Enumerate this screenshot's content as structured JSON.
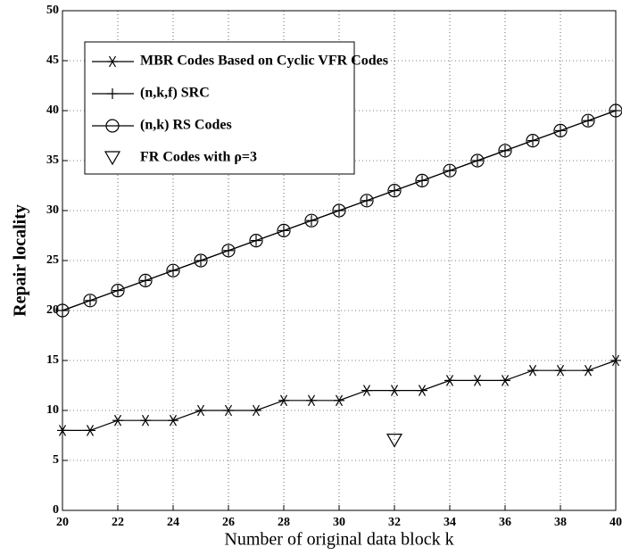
{
  "chart_data": {
    "type": "line",
    "xlabel": "Number of original data block k",
    "ylabel": "Repair locality",
    "x": [
      20,
      21,
      22,
      23,
      24,
      25,
      26,
      27,
      28,
      29,
      30,
      31,
      32,
      33,
      34,
      35,
      36,
      37,
      38,
      39,
      40
    ],
    "series": [
      {
        "name": "MBR Codes Based on Cyclic VFR Codes",
        "color": "#000000",
        "marker": "asterisk",
        "line": true,
        "values": [
          8,
          8,
          9,
          9,
          9,
          10,
          10,
          10,
          11,
          11,
          11,
          12,
          12,
          12,
          13,
          13,
          13,
          14,
          14,
          14,
          15
        ]
      },
      {
        "name": "(n,k,f) SRC",
        "color": "#000000",
        "marker": "plus",
        "line": true,
        "values": [
          20,
          21,
          22,
          23,
          24,
          25,
          26,
          27,
          28,
          29,
          30,
          31,
          32,
          33,
          34,
          35,
          36,
          37,
          38,
          39,
          40
        ]
      },
      {
        "name": "(n,k) RS Codes",
        "color": "#000000",
        "marker": "circle",
        "line": true,
        "values": [
          20,
          21,
          22,
          23,
          24,
          25,
          26,
          27,
          28,
          29,
          30,
          31,
          32,
          33,
          34,
          35,
          36,
          37,
          38,
          39,
          40
        ]
      },
      {
        "name": "FR Codes with ρ=3",
        "color": "#000000",
        "marker": "triangle",
        "line": false,
        "x": [
          32
        ],
        "values": [
          7
        ]
      }
    ],
    "xlim": [
      20,
      40
    ],
    "xticks": [
      20,
      22,
      24,
      26,
      28,
      30,
      32,
      34,
      36,
      38,
      40
    ],
    "ylim": [
      0,
      50
    ],
    "yticks": [
      0,
      5,
      10,
      15,
      20,
      25,
      30,
      35,
      40,
      45,
      50
    ],
    "grid": true,
    "legend": "upper left"
  }
}
